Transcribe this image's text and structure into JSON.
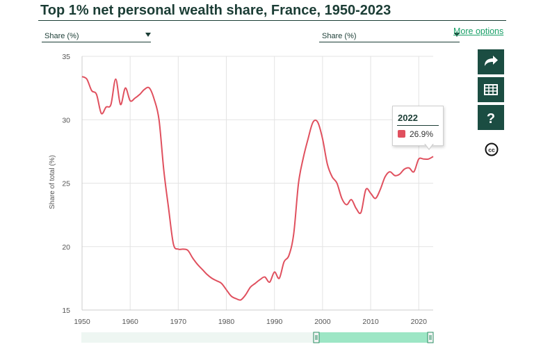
{
  "header": {
    "title": "Top 1% net personal wealth share, France, 1950-2023"
  },
  "controls": {
    "left_select": "Share (%)",
    "right_select": "Share (%)",
    "more_options": "More options"
  },
  "side_buttons": [
    "share-icon",
    "table-icon",
    "help-icon",
    "creative-commons-icon"
  ],
  "side_labels": {
    "help": "?",
    "cc": "cc"
  },
  "tooltip": {
    "year": "2022",
    "value": "26.9%"
  },
  "colors": {
    "line": "#e0505e",
    "dark": "#1b4d42",
    "accent": "#1aa068",
    "navigator": "#9de6c5"
  },
  "navigator": {
    "selected_range": [
      0.66,
      1.0
    ]
  },
  "chart_data": {
    "type": "line",
    "title": "Top 1% net personal wealth share, France, 1950-2023",
    "ylabel": "Share of total (%)",
    "xlabel": "",
    "xlim": [
      1950,
      2023
    ],
    "ylim": [
      15,
      35
    ],
    "xticks": [
      1950,
      1960,
      1970,
      1980,
      1990,
      2000,
      2010,
      2020
    ],
    "yticks": [
      15,
      20,
      25,
      30,
      35
    ],
    "grid": true,
    "series": [
      {
        "name": "Top 1% net personal wealth share",
        "x": [
          1950,
          1951,
          1952,
          1953,
          1954,
          1955,
          1956,
          1957,
          1958,
          1959,
          1960,
          1961,
          1962,
          1963,
          1964,
          1965,
          1966,
          1967,
          1968,
          1969,
          1970,
          1971,
          1972,
          1973,
          1974,
          1975,
          1976,
          1977,
          1978,
          1979,
          1980,
          1981,
          1982,
          1983,
          1984,
          1985,
          1986,
          1987,
          1988,
          1989,
          1990,
          1991,
          1992,
          1993,
          1994,
          1995,
          1996,
          1997,
          1998,
          1999,
          2000,
          2001,
          2002,
          2003,
          2004,
          2005,
          2006,
          2007,
          2008,
          2009,
          2010,
          2011,
          2012,
          2013,
          2014,
          2015,
          2016,
          2017,
          2018,
          2019,
          2020,
          2021,
          2022,
          2023
        ],
        "y": [
          33.4,
          33.2,
          32.3,
          32.0,
          30.5,
          31.0,
          31.2,
          33.2,
          31.2,
          32.5,
          31.5,
          31.7,
          32.0,
          32.4,
          32.5,
          31.6,
          30.0,
          26.0,
          23.0,
          20.2,
          19.8,
          19.8,
          19.7,
          19.1,
          18.6,
          18.2,
          17.8,
          17.5,
          17.3,
          17.1,
          16.6,
          16.1,
          15.9,
          15.8,
          16.2,
          16.8,
          17.1,
          17.4,
          17.6,
          17.2,
          18.0,
          17.5,
          18.8,
          19.3,
          21.0,
          25.0,
          27.0,
          28.5,
          29.8,
          29.8,
          28.5,
          26.5,
          25.5,
          25.0,
          23.8,
          23.3,
          23.7,
          23.0,
          22.7,
          24.5,
          24.2,
          23.8,
          24.5,
          25.5,
          25.9,
          25.6,
          25.7,
          26.1,
          26.2,
          25.9,
          26.9,
          26.9,
          26.9,
          27.1
        ]
      }
    ],
    "highlight": {
      "x": 2022,
      "y": 26.9,
      "label": "26.9%"
    }
  }
}
